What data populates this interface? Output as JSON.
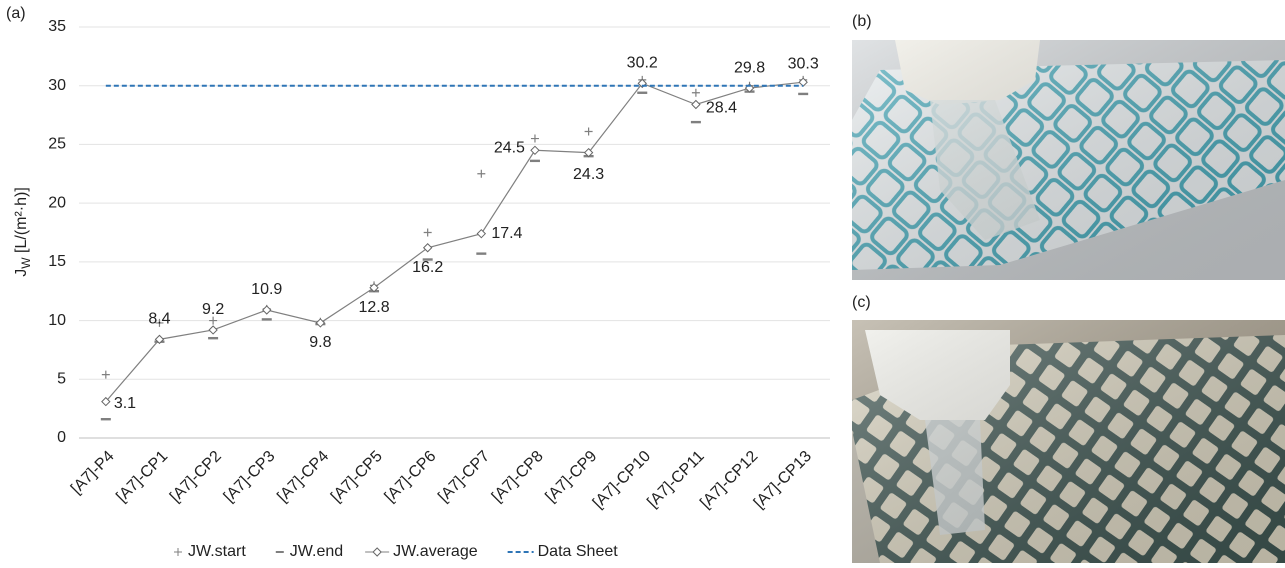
{
  "chart_data": {
    "type": "line",
    "panel_label": "(a)",
    "y_label": [
      "J",
      "W",
      " [L/(m²·h)]"
    ],
    "categories": [
      "[A7]-P4",
      "[A7]-CP1",
      "[A7]-CP2",
      "[A7]-CP3",
      "[A7]-CP4",
      "[A7]-CP5",
      "[A7]-CP6",
      "[A7]-CP7",
      "[A7]-CP8",
      "[A7]-CP9",
      "[A7]-CP10",
      "[A7]-CP11",
      "[A7]-CP12",
      "[A7]-CP13"
    ],
    "series": [
      {
        "name": "JW.start",
        "color": "#7f7f7f",
        "marker": "plus",
        "values": [
          5.4,
          9.8,
          10.0,
          11.0,
          9.9,
          13.0,
          17.5,
          22.5,
          25.5,
          26.1,
          30.5,
          29.4,
          30.0,
          30.5
        ]
      },
      {
        "name": "JW.end",
        "color": "#7f7f7f",
        "marker": "dash",
        "values": [
          1.6,
          8.2,
          8.5,
          10.1,
          9.7,
          12.5,
          15.2,
          15.7,
          23.6,
          24.0,
          29.4,
          26.9,
          29.5,
          29.3
        ]
      },
      {
        "name": "JW.average",
        "color": "#808080",
        "marker": "diamond",
        "line": true,
        "data_labels": true,
        "values": [
          3.1,
          8.4,
          9.2,
          10.9,
          9.8,
          12.8,
          16.2,
          17.4,
          24.5,
          24.3,
          30.2,
          28.4,
          29.8,
          30.3
        ]
      },
      {
        "name": "Data Sheet",
        "color": "#2e75b6",
        "marker": "none",
        "line": true,
        "dashed": true,
        "values": [
          30,
          30,
          30,
          30,
          30,
          30,
          30,
          30,
          30,
          30,
          30,
          30,
          30,
          30
        ]
      }
    ],
    "ylim": [
      0,
      35
    ],
    "yticks": [
      0,
      5,
      10,
      15,
      20,
      25,
      30,
      35
    ],
    "grid": true,
    "legend": "bottom"
  },
  "photos": [
    {
      "label": "(b)"
    },
    {
      "label": "(c)"
    }
  ]
}
